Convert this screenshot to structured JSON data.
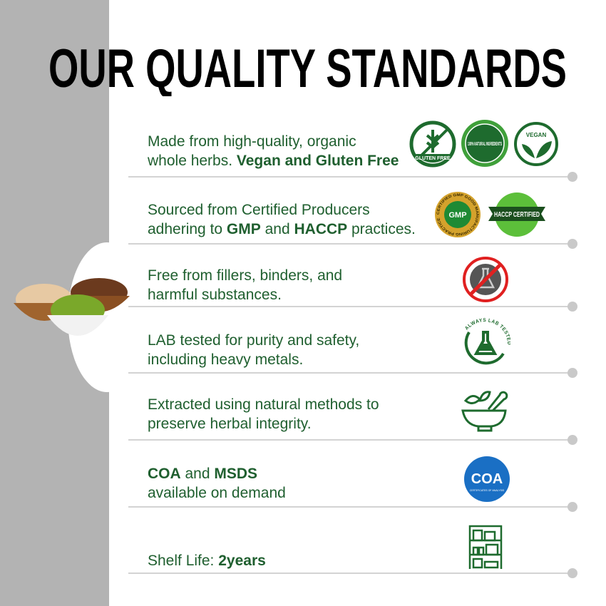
{
  "title": "OUR QUALITY STANDARDS",
  "rows": [
    {
      "pre": "Made from high-quality, organic",
      "line2": "whole herbs. ",
      "bold": "Vegan and Gluten Free",
      "badges": [
        "GLUTEN FREE",
        "100% NATURAL INGREDIENTS",
        "VEGAN"
      ]
    },
    {
      "pre": "Sourced from Certified Producers",
      "line2": "adhering to ",
      "bold1": "GMP",
      "mid": " and ",
      "bold2": "HACCP",
      "post": " practices.",
      "badges": [
        "CERTIFIED GMP GOOD MANUFACTURING PRACTICE",
        "HACCP CERTIFIED"
      ]
    },
    {
      "pre": "Free from fillers, binders, and",
      "line2": "harmful substances.",
      "icon": "no-chemicals-icon"
    },
    {
      "pre": "LAB tested for purity and safety,",
      "line2": "including heavy metals.",
      "icon": "lab-tested-icon",
      "badge": "ALWAYS LAB TESTED"
    },
    {
      "pre": "Extracted using natural methods to",
      "line2": "preserve herbal integrity.",
      "icon": "mortar-pestle-icon"
    },
    {
      "bold1": "COA",
      "mid": " and ",
      "bold2": "MSDS",
      "line2": "available on demand",
      "icon": "coa-icon",
      "badge": "COA",
      "badge_sub": "CERTIFICATES OF ANALYSIS"
    },
    {
      "pre": "Shelf Life: ",
      "bold": "2years",
      "icon": "shelf-icon"
    }
  ],
  "colors": {
    "text": "#1f5f2f",
    "band": "#b3b3b3",
    "green": "#1e7a34",
    "coa": "#1a6fc4",
    "red": "#e02020"
  }
}
